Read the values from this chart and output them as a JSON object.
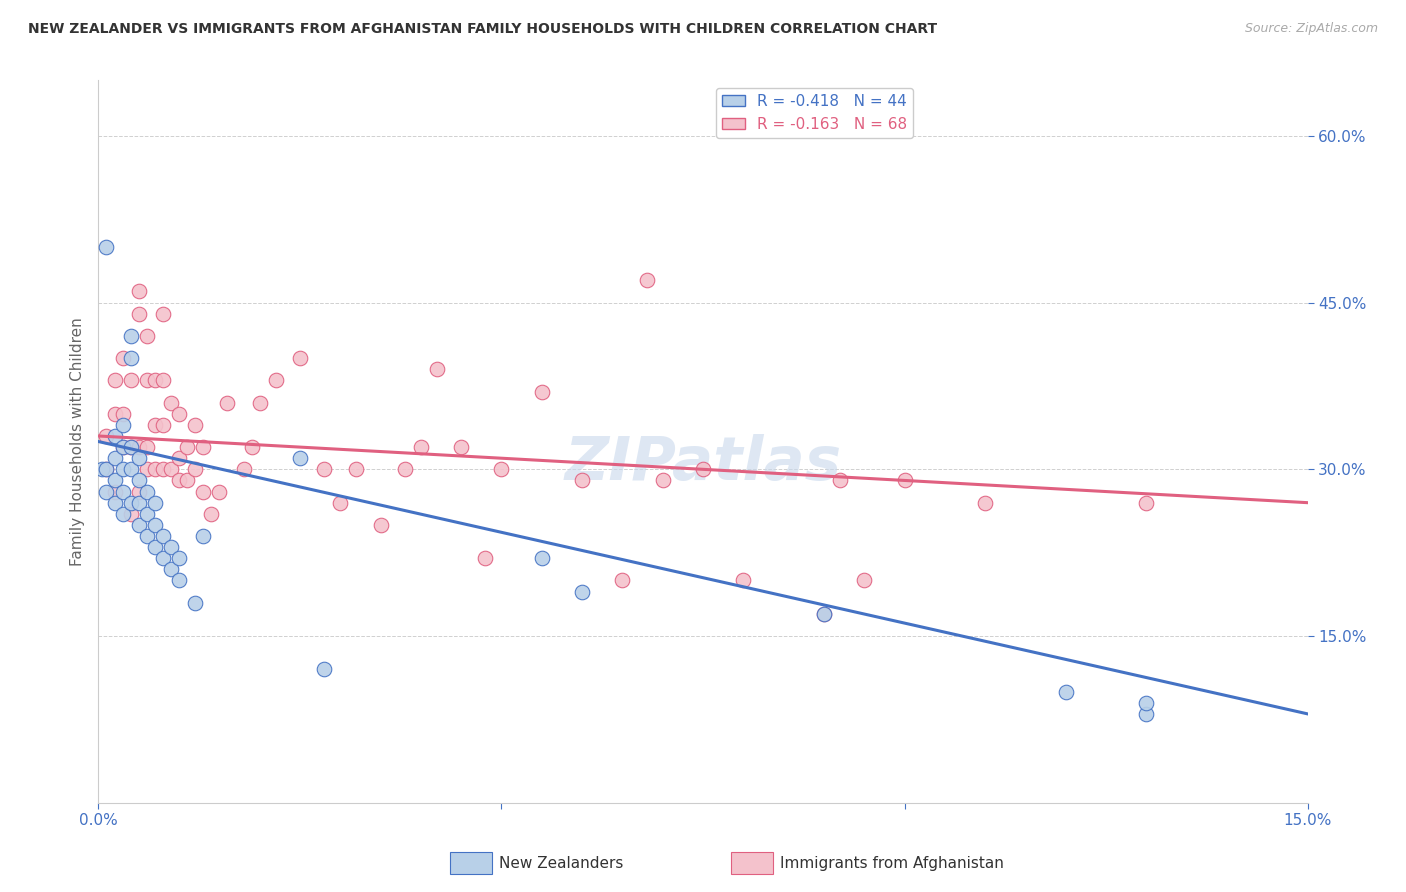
{
  "title": "NEW ZEALANDER VS IMMIGRANTS FROM AFGHANISTAN FAMILY HOUSEHOLDS WITH CHILDREN CORRELATION CHART",
  "source": "Source: ZipAtlas.com",
  "ylabel": "Family Households with Children",
  "xmin": 0.0,
  "xmax": 0.15,
  "ymin": 0.0,
  "ymax": 0.65,
  "legend_r1": "R = -0.418",
  "legend_n1": "N = 44",
  "legend_r2": "R = -0.163",
  "legend_n2": "N = 68",
  "blue_color": "#b8d0e8",
  "blue_line_color": "#4472c4",
  "pink_color": "#f4c2cc",
  "pink_line_color": "#e06080",
  "watermark": "ZIPatlas",
  "blue_scatter_x": [
    0.0005,
    0.001,
    0.001,
    0.001,
    0.002,
    0.002,
    0.002,
    0.002,
    0.003,
    0.003,
    0.003,
    0.003,
    0.003,
    0.004,
    0.004,
    0.004,
    0.004,
    0.004,
    0.005,
    0.005,
    0.005,
    0.005,
    0.006,
    0.006,
    0.006,
    0.007,
    0.007,
    0.007,
    0.008,
    0.008,
    0.009,
    0.009,
    0.01,
    0.01,
    0.012,
    0.013,
    0.025,
    0.028,
    0.055,
    0.06,
    0.09,
    0.12,
    0.13,
    0.13
  ],
  "blue_scatter_y": [
    0.3,
    0.5,
    0.28,
    0.3,
    0.27,
    0.29,
    0.31,
    0.33,
    0.26,
    0.28,
    0.3,
    0.32,
    0.34,
    0.4,
    0.42,
    0.3,
    0.32,
    0.27,
    0.25,
    0.27,
    0.29,
    0.31,
    0.24,
    0.26,
    0.28,
    0.23,
    0.25,
    0.27,
    0.22,
    0.24,
    0.21,
    0.23,
    0.2,
    0.22,
    0.18,
    0.24,
    0.31,
    0.12,
    0.22,
    0.19,
    0.17,
    0.1,
    0.08,
    0.09
  ],
  "pink_scatter_x": [
    0.001,
    0.001,
    0.002,
    0.002,
    0.002,
    0.003,
    0.003,
    0.003,
    0.004,
    0.004,
    0.004,
    0.005,
    0.005,
    0.005,
    0.005,
    0.006,
    0.006,
    0.006,
    0.006,
    0.007,
    0.007,
    0.007,
    0.008,
    0.008,
    0.008,
    0.008,
    0.009,
    0.009,
    0.01,
    0.01,
    0.01,
    0.011,
    0.011,
    0.012,
    0.012,
    0.013,
    0.013,
    0.014,
    0.015,
    0.016,
    0.018,
    0.019,
    0.02,
    0.022,
    0.025,
    0.028,
    0.03,
    0.032,
    0.035,
    0.038,
    0.04,
    0.042,
    0.045,
    0.048,
    0.05,
    0.055,
    0.06,
    0.065,
    0.068,
    0.07,
    0.075,
    0.08,
    0.09,
    0.092,
    0.095,
    0.1,
    0.11,
    0.13
  ],
  "pink_scatter_y": [
    0.3,
    0.33,
    0.28,
    0.35,
    0.38,
    0.32,
    0.35,
    0.4,
    0.26,
    0.32,
    0.38,
    0.44,
    0.32,
    0.28,
    0.46,
    0.3,
    0.32,
    0.38,
    0.42,
    0.3,
    0.34,
    0.38,
    0.3,
    0.34,
    0.38,
    0.44,
    0.3,
    0.36,
    0.29,
    0.31,
    0.35,
    0.29,
    0.32,
    0.3,
    0.34,
    0.28,
    0.32,
    0.26,
    0.28,
    0.36,
    0.3,
    0.32,
    0.36,
    0.38,
    0.4,
    0.3,
    0.27,
    0.3,
    0.25,
    0.3,
    0.32,
    0.39,
    0.32,
    0.22,
    0.3,
    0.37,
    0.29,
    0.2,
    0.47,
    0.29,
    0.3,
    0.2,
    0.17,
    0.29,
    0.2,
    0.29,
    0.27,
    0.27
  ]
}
